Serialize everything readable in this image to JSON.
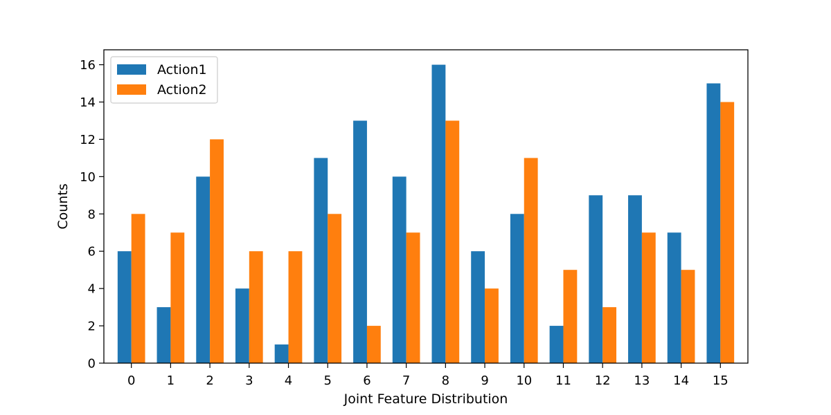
{
  "chart_data": {
    "type": "bar",
    "title": "",
    "xlabel": "Joint Feature Distribution",
    "ylabel": "Counts",
    "categories": [
      "0",
      "1",
      "2",
      "3",
      "4",
      "5",
      "6",
      "7",
      "8",
      "9",
      "10",
      "11",
      "12",
      "13",
      "14",
      "15"
    ],
    "series": [
      {
        "name": "Action1",
        "color": "#1f77b4",
        "values": [
          6,
          3,
          10,
          4,
          1,
          11,
          13,
          10,
          16,
          6,
          8,
          2,
          9,
          9,
          7,
          15
        ]
      },
      {
        "name": "Action2",
        "color": "#ff7f0e",
        "values": [
          8,
          7,
          12,
          6,
          6,
          8,
          2,
          7,
          13,
          4,
          11,
          5,
          3,
          7,
          5,
          14
        ]
      }
    ],
    "ylim": [
      0,
      16.8
    ],
    "yticks": [
      0,
      2,
      4,
      6,
      8,
      10,
      12,
      14,
      16
    ],
    "grid": false,
    "legend_position": "top-left"
  }
}
